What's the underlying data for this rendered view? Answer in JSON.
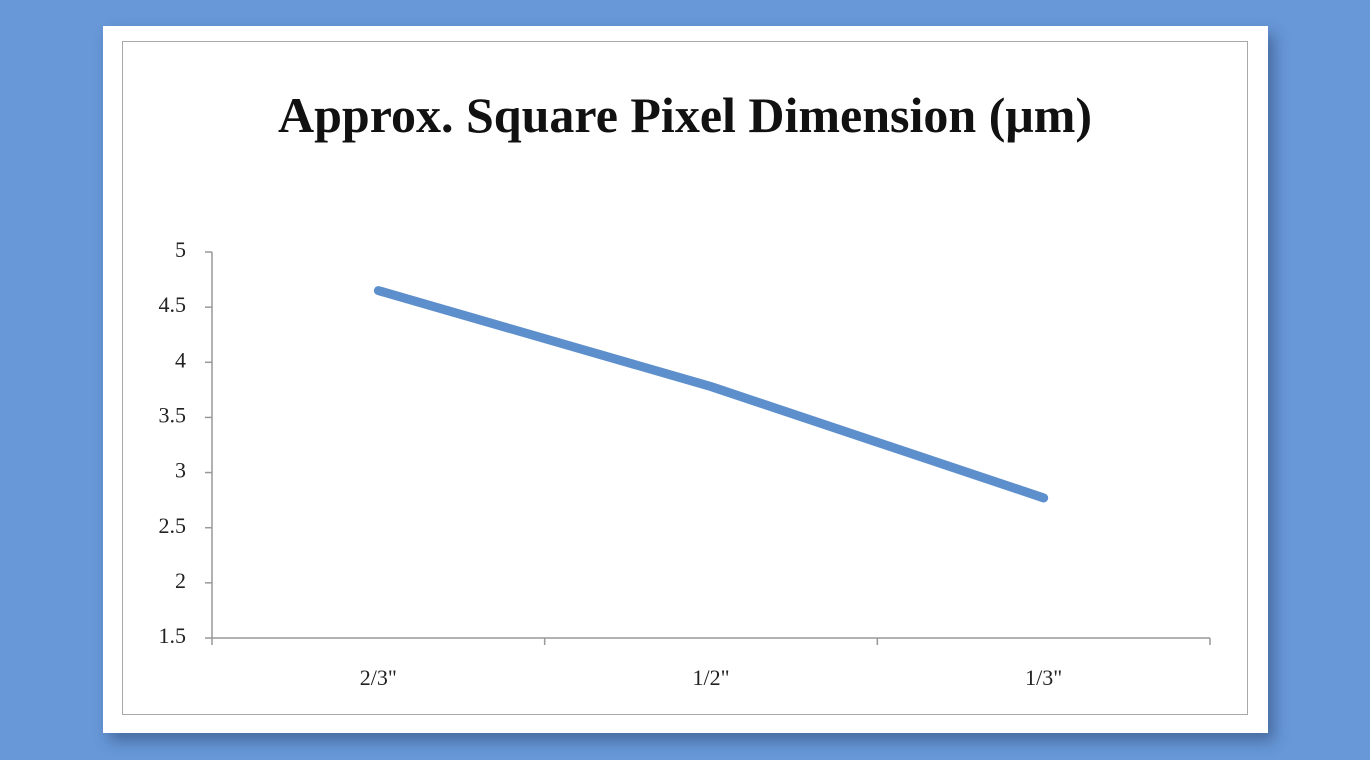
{
  "chart_data": {
    "type": "line",
    "title": "Approx. Square Pixel Dimension (μm)",
    "categories": [
      "2/3\"",
      "1/2\"",
      "1/3\""
    ],
    "series": [
      {
        "name": "Approx. Square Pixel Dimension (μm)",
        "color": "#5e8fcd",
        "values": [
          4.65,
          3.78,
          2.77
        ]
      }
    ],
    "ylim": [
      1.5,
      5
    ],
    "yticks": [
      1.5,
      2,
      2.5,
      3,
      3.5,
      4,
      4.5,
      5
    ],
    "grid": false,
    "legend": false
  }
}
